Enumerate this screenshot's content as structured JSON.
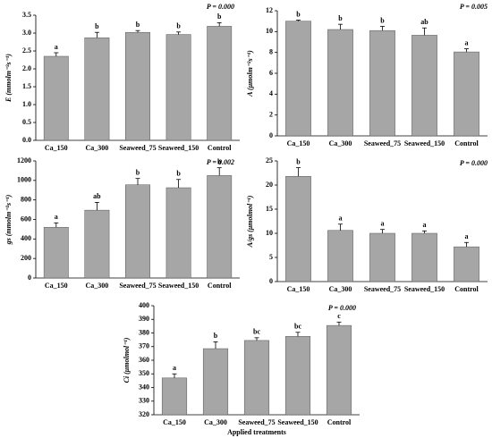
{
  "chart_data": [
    {
      "type": "bar",
      "ylabel": "E (mmolm⁻²s⁻¹)",
      "annotation": "P = 0.000",
      "categories": [
        "Ca_150",
        "Ca_300",
        "Seaweed_75",
        "Seaweed_150",
        "Control"
      ],
      "values": [
        2.35,
        2.87,
        3.02,
        2.96,
        3.19
      ],
      "errors": [
        0.1,
        0.15,
        0.05,
        0.07,
        0.1
      ],
      "letters": [
        "a",
        "b",
        "b",
        "b",
        "b"
      ],
      "color": "#a6a6a6",
      "ylim": [
        0,
        3.5
      ],
      "yticks": [
        {
          "value": 0,
          "label": "0.0"
        },
        0.5,
        {
          "value": 1,
          "label": "1.0"
        },
        1.5,
        {
          "value": 2,
          "label": "2.0"
        },
        2.5,
        {
          "value": 3,
          "label": "3.0"
        },
        3.5
      ]
    },
    {
      "type": "bar",
      "ylabel": "A (μmolm⁻²s⁻¹)",
      "annotation": "P = 0.005",
      "categories": [
        "Ca_150",
        "Ca_300",
        "Seaweed_75",
        "Seaweed_150",
        "Control"
      ],
      "values": [
        11.0,
        10.2,
        10.1,
        9.65,
        8.05
      ],
      "errors": [
        0.1,
        0.5,
        0.4,
        0.7,
        0.3
      ],
      "letters": [
        "b",
        "b",
        "b",
        "ab",
        "a"
      ],
      "color": "#a6a6a6",
      "ylim": [
        0,
        12
      ],
      "yticks": [
        0,
        2,
        4,
        6,
        8,
        10,
        12
      ]
    },
    {
      "type": "bar",
      "ylabel": "gs (mmolm⁻²s⁻¹)",
      "annotation": "P = 0.002",
      "categories": [
        "Ca_150",
        "Ca_300",
        "Seaweed_75",
        "Seaweed_150",
        "Control"
      ],
      "values": [
        520,
        695,
        955,
        925,
        1050
      ],
      "errors": [
        45,
        80,
        65,
        85,
        80
      ],
      "letters": [
        "a",
        "ab",
        "b",
        "b",
        "b"
      ],
      "color": "#a6a6a6",
      "ylim": [
        0,
        1200
      ],
      "yticks": [
        0,
        200,
        400,
        600,
        800,
        1000,
        1200
      ]
    },
    {
      "type": "bar",
      "ylabel": "A/gs (μmolmol⁻¹)",
      "annotation": "P = 0.000",
      "categories": [
        "Ca_150",
        "Ca_300",
        "Seaweed_75",
        "Seaweed_150",
        "Control"
      ],
      "values": [
        21.8,
        10.6,
        10.0,
        10.0,
        7.2
      ],
      "errors": [
        1.8,
        1.3,
        0.8,
        0.5,
        0.9
      ],
      "letters": [
        "b",
        "a",
        "a",
        "a",
        "a"
      ],
      "color": "#a6a6a6",
      "ylim": [
        0,
        25
      ],
      "yticks": [
        0,
        5,
        10,
        15,
        20,
        25
      ]
    },
    {
      "type": "bar",
      "ylabel": "Ci (μmolmol⁻¹)",
      "annotation": "P = 0.000",
      "xlabel": "Applied treatments",
      "categories": [
        "Ca_150",
        "Ca_300",
        "Seaweed_75",
        "Seaweed_150",
        "Control"
      ],
      "values": [
        347,
        368.5,
        374.5,
        377.5,
        385.5
      ],
      "errors": [
        3,
        5,
        2,
        3,
        2.5
      ],
      "letters": [
        "a",
        "b",
        "bc",
        "bc",
        "c"
      ],
      "color": "#a6a6a6",
      "ylim": [
        320,
        400
      ],
      "yticks": [
        320,
        330,
        340,
        350,
        360,
        370,
        380,
        390,
        400
      ]
    }
  ]
}
